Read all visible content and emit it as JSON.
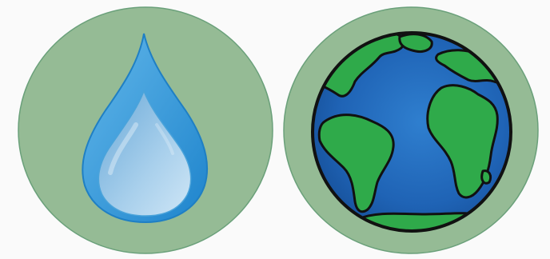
{
  "badges": [
    {
      "id": "water",
      "icon": "water-drop-icon"
    },
    {
      "id": "earth",
      "icon": "earth-globe-icon"
    }
  ],
  "colors": {
    "badge_fill": "#95bb95",
    "badge_stroke": "#5f9a6f",
    "drop_outer": "#2f95d6",
    "drop_inner": "#8ec3e6",
    "ocean": "#2064b8",
    "land": "#2faa4a",
    "outline": "#111111"
  }
}
